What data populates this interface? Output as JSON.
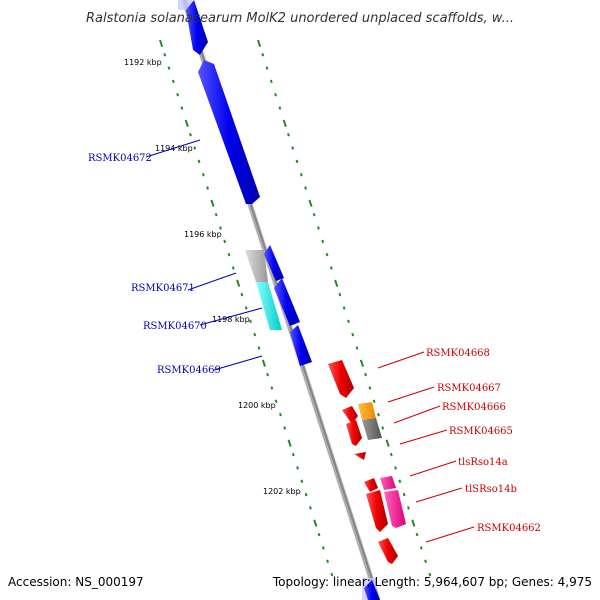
{
  "title": "Ralstonia solanacearum MolK2 unordered unplaced scaffolds, w...",
  "accession": "Accession: NS_000197",
  "topology": "Topology: linear; Length: 5,964,607 bp; Genes: 4,975",
  "ticks": [
    "1192 kbp",
    "1194 kbp",
    "1196 kbp",
    "1198 kbp",
    "1200 kbp",
    "1202 kbp"
  ],
  "left_labels": [
    "RSMK04672",
    "RSMK04671",
    "RSMK04670",
    "RSMK04669"
  ],
  "right_labels": [
    "RSMK04668",
    "RSMK04667",
    "RSMK04666",
    "RSMK04665",
    "tlsRso14a",
    "tlSRso14b",
    "RSMK04662"
  ],
  "colors": {
    "forward_gene": "#ff0000",
    "reverse_gene": "#0000ff",
    "cyan_gene": "#00e5e5",
    "gray_gene": "#bbbbbb",
    "orange_gene": "#ff9900",
    "dark_gray_gene": "#777777",
    "pink_gene": "#ff1a8c",
    "tick_dashes": "#228b22",
    "backbone": "#888888",
    "left_label": "#0000bb",
    "right_label": "#cc0000"
  },
  "icons": [
    "backbone-line",
    "gene-arrow-shape",
    "tick-dash-shape"
  ]
}
